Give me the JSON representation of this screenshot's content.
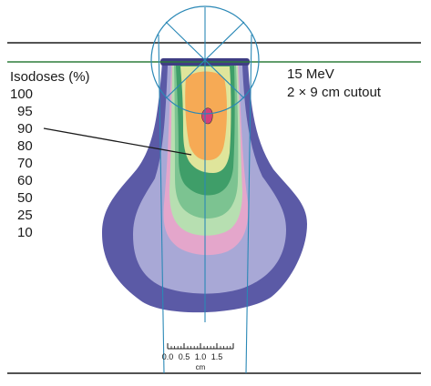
{
  "legend": {
    "title": "Isodoses (%)",
    "levels": [
      "100",
      "95",
      "90",
      "80",
      "70",
      "60",
      "50",
      "25",
      "10"
    ]
  },
  "annotation": {
    "energy": "15 MeV",
    "cutout": "2 × 9 cm cutout"
  },
  "scale_bar": {
    "ticks": [
      "0.0",
      "0.5",
      "1.0",
      "1.5"
    ],
    "unit": "cm"
  },
  "colors": {
    "iso_10": "#5b5aa6",
    "iso_25": "#a8a8d6",
    "iso_50": "#e4a6cb",
    "iso_60": "#b7dfb1",
    "iso_70": "#7cc391",
    "iso_80": "#3f9e69",
    "iso_90": "#dfe59b",
    "iso_95": "#f6aa55",
    "iso_100": "#d6407a",
    "beam_lines": "#2a88b6",
    "surface_line": "#2e7d3c",
    "frame_lines": "#1a1a1a"
  }
}
